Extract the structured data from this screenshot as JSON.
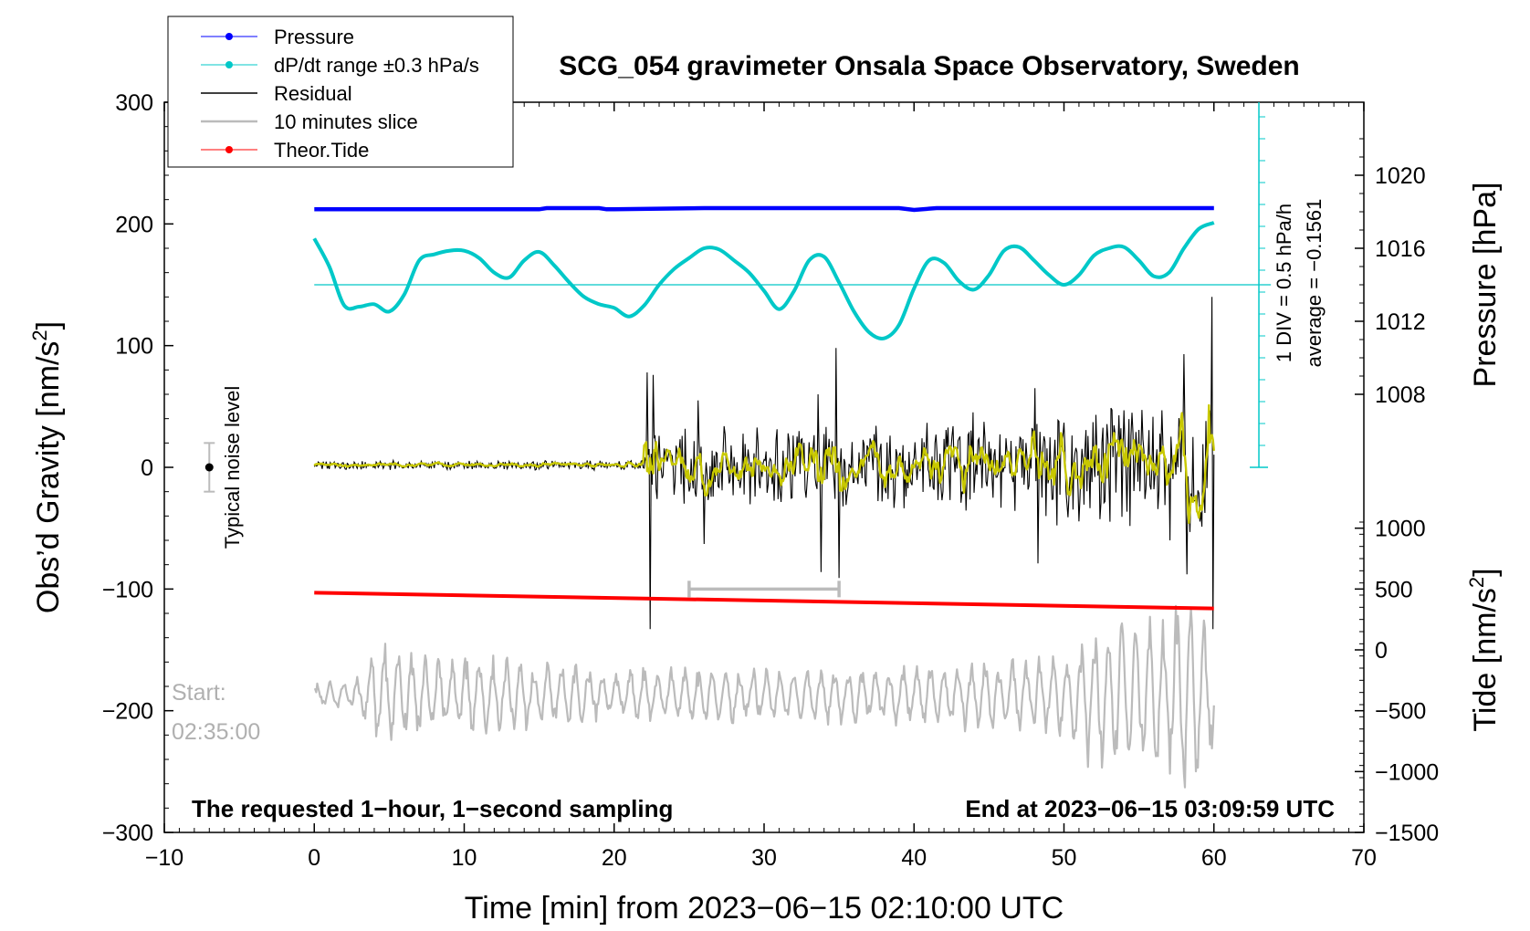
{
  "chart_data": {
    "type": "line",
    "title": "SCG_054 gravimeter Onsala Space Observatory, Sweden",
    "xlabel": "Time [min] from 2023−06−15 02:10:00 UTC",
    "ylabel_left": "Obs’d Gravity [nm/s",
    "ylabel_left_sup": "2",
    "ylabel_left_end": "]",
    "ylabel_right_top": "Pressure [hPa]",
    "ylabel_right_bottom": "Tide [nm/s",
    "ylabel_right_bottom_sup": "2",
    "ylabel_right_bottom_end": "]",
    "xlim": [
      -10,
      70
    ],
    "ylim": [
      -300,
      300
    ],
    "x_ticks": [
      -10,
      0,
      10,
      20,
      30,
      40,
      50,
      60,
      70
    ],
    "x_tick_labels": [
      "−10",
      "0",
      "10",
      "20",
      "30",
      "40",
      "50",
      "60",
      "70"
    ],
    "y_ticks": [
      300,
      200,
      100,
      0,
      -100,
      -200,
      -300
    ],
    "y_tick_labels": [
      "300",
      "200",
      "100",
      "0",
      "−100",
      "−200",
      "−300"
    ],
    "pressure_axis": {
      "ticks": [
        1020,
        1016,
        1012,
        1008
      ],
      "tick_labels": [
        "1020",
        "1016",
        "1012",
        "1008"
      ],
      "gravity_equiv": [
        240,
        180,
        120,
        60
      ]
    },
    "tide_axis": {
      "ticks": [
        1000,
        500,
        0,
        -500,
        -1000,
        -1500
      ],
      "tick_labels": [
        "1000",
        "500",
        "0",
        "−500",
        "−1000",
        "−1500"
      ],
      "gravity_equiv": [
        -50,
        -100,
        -150,
        -200,
        -250,
        -300
      ]
    },
    "legend": [
      {
        "label": "Pressure",
        "color": "#0000ff",
        "marker": true
      },
      {
        "label": "dP/dt range ±0.3 hPa/s",
        "color": "#00c8c8",
        "marker": true
      },
      {
        "label": "Residual",
        "color": "#000000",
        "marker": false
      },
      {
        "label": "10 minutes slice",
        "color": "#bbbbbb",
        "marker": false
      },
      {
        "label": "Theor.Tide",
        "color": "#ff0000",
        "marker": true
      }
    ],
    "pressure": {
      "x": [
        0,
        15,
        15.5,
        19,
        19.5,
        20,
        26,
        39,
        40,
        41.5,
        60
      ],
      "y": [
        212,
        212,
        213,
        213,
        212,
        212,
        213,
        213,
        211.5,
        213,
        213
      ]
    },
    "dpdt": {
      "x": [
        0,
        1,
        2,
        3,
        4,
        5,
        6,
        7,
        8,
        9,
        10,
        11,
        12,
        13,
        14,
        15,
        16,
        17,
        18,
        19,
        20,
        21,
        22,
        23,
        24,
        25,
        26,
        27,
        28,
        29,
        30,
        31,
        32,
        33,
        34,
        35,
        36,
        37,
        38,
        39,
        40,
        41,
        42,
        43,
        44,
        45,
        46,
        47,
        48,
        49,
        50,
        51,
        52,
        53,
        54,
        55,
        56,
        57,
        58,
        59,
        60
      ],
      "y": [
        188,
        165,
        133,
        132,
        134,
        128,
        142,
        170,
        175,
        178,
        178,
        172,
        160,
        156,
        170,
        177,
        166,
        152,
        140,
        134,
        131,
        124,
        133,
        150,
        163,
        172,
        180,
        179,
        170,
        160,
        145,
        130,
        145,
        170,
        173,
        152,
        128,
        111,
        106,
        117,
        147,
        170,
        168,
        153,
        146,
        158,
        178,
        181,
        170,
        158,
        150,
        158,
        174,
        180,
        181,
        170,
        157,
        160,
        180,
        196,
        201
      ]
    },
    "dpdt_reference": {
      "y": 150,
      "label": "average = −0.1561"
    },
    "dpdt_scale": {
      "label": "1 DIV = 0.5 hPa/h",
      "y_bottom": 0,
      "y_top": 300,
      "div": 18
    },
    "residual": {
      "x_range": [
        0,
        60
      ],
      "n_points": 900,
      "amplitude_profile": {
        "x": [
          0,
          22,
          22.3,
          30,
          40,
          50,
          60
        ],
        "amp": [
          3,
          4,
          25,
          28,
          32,
          40,
          50
        ]
      },
      "spikes": [
        {
          "x": 22.2,
          "y": 78
        },
        {
          "x": 22.4,
          "y": -133
        },
        {
          "x": 22.6,
          "y": 76
        },
        {
          "x": 25.6,
          "y": 55
        },
        {
          "x": 26.0,
          "y": -63
        },
        {
          "x": 33.6,
          "y": 60
        },
        {
          "x": 33.8,
          "y": -86
        },
        {
          "x": 34.8,
          "y": 98
        },
        {
          "x": 35.0,
          "y": -91
        },
        {
          "x": 48.1,
          "y": 65
        },
        {
          "x": 48.3,
          "y": -79
        },
        {
          "x": 57.1,
          "y": -60
        },
        {
          "x": 58.0,
          "y": 93
        },
        {
          "x": 58.2,
          "y": -88
        },
        {
          "x": 59.9,
          "y": 140
        },
        {
          "x": 59.95,
          "y": -133
        }
      ]
    },
    "smoothed_residual": {
      "x_range": [
        0,
        60
      ],
      "color": "#c8c800"
    },
    "theor_tide": {
      "x": [
        0,
        60
      ],
      "y": [
        -103,
        -116
      ]
    },
    "slice_bracket": {
      "x": [
        25,
        35
      ],
      "y": -100
    },
    "ten_minute_slice": {
      "x_range": [
        0,
        60
      ],
      "center_gravity": -187,
      "amplitude_profile": {
        "x": [
          0,
          3,
          4,
          5,
          10,
          20,
          40,
          50,
          52,
          57,
          58,
          59,
          60
        ],
        "amp": [
          8,
          12,
          40,
          35,
          30,
          20,
          22,
          30,
          55,
          55,
          90,
          60,
          40
        ]
      }
    },
    "noise_level": {
      "x": -7,
      "y": 0,
      "error": 20,
      "label": "Typical noise level"
    },
    "start_label": "Start:",
    "start_time": "02:35:00",
    "note_left": "The requested 1−hour, 1−second sampling",
    "note_right": "End at 2023−06−15 03:09:59 UTC"
  }
}
